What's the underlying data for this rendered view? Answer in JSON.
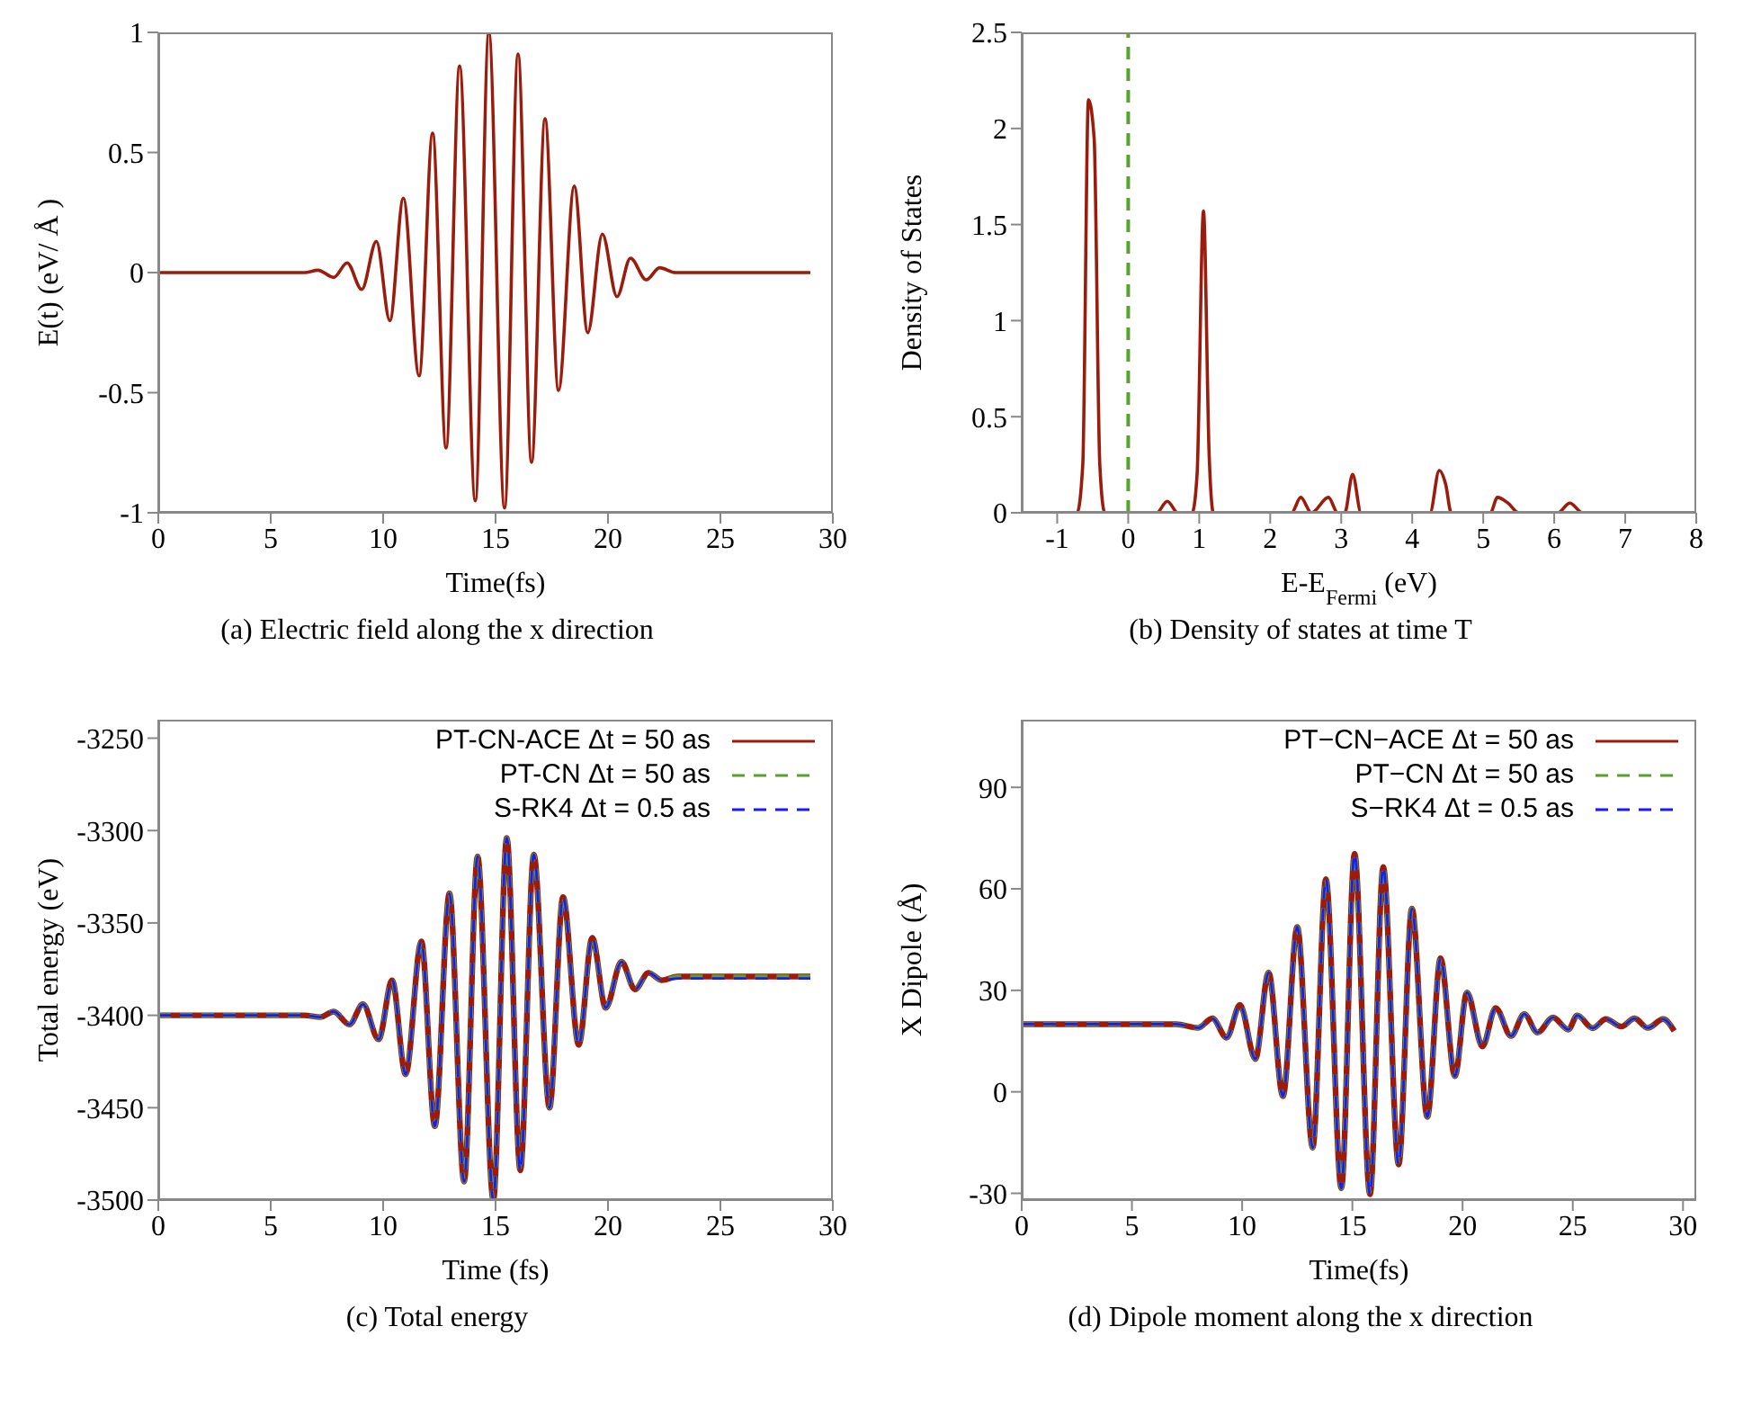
{
  "chart_data": [
    {
      "type": "line",
      "title": "(a) Electric field along the x direction",
      "xlabel": "Time(fs)",
      "ylabel": "E(t) (eV/ Å )",
      "xlim": [
        0,
        30
      ],
      "xticks": [
        0,
        5,
        10,
        15,
        20,
        25,
        30
      ],
      "ylim": [
        -1,
        1
      ],
      "yticks": [
        -1,
        -0.5,
        0,
        0.5,
        1
      ],
      "series": [
        {
          "color": "#9b1c0c",
          "line_style": "solid",
          "x": [
            0,
            6.5,
            7.1,
            7.8,
            8.4,
            9.05,
            9.7,
            10.3,
            10.9,
            11.6,
            12.2,
            12.8,
            13.4,
            14.1,
            14.7,
            15.4,
            16.0,
            16.6,
            17.2,
            17.8,
            18.5,
            19.1,
            19.75,
            20.4,
            21.0,
            21.7,
            22.3,
            23,
            29
          ],
          "values": [
            0,
            0,
            0.01,
            -0.02,
            0.04,
            -0.07,
            0.13,
            -0.2,
            0.31,
            -0.43,
            0.58,
            -0.73,
            0.86,
            -0.95,
            1,
            -0.98,
            0.91,
            -0.79,
            0.64,
            -0.49,
            0.36,
            -0.25,
            0.16,
            -0.1,
            0.06,
            -0.03,
            0.02,
            0,
            0
          ]
        }
      ]
    },
    {
      "type": "line",
      "title": "(b) Density of states at time T",
      "xlabel": "E-E$_{Fermi}$ (eV)",
      "ylabel": "Density of States",
      "xlim": [
        -1.5,
        8
      ],
      "xticks": [
        -1,
        0,
        1,
        2,
        3,
        4,
        5,
        6,
        7,
        8
      ],
      "ylim": [
        0,
        2.5
      ],
      "yticks": [
        0,
        0.5,
        1,
        1.5,
        2,
        2.5
      ],
      "ref_lines": [
        {
          "axis": "x",
          "value": 0,
          "color": "#5aa02c",
          "line_style": "dashed"
        }
      ],
      "series": [
        {
          "color": "#9b1c0c",
          "line_style": "solid",
          "x": [
            -1.5,
            -0.72,
            -0.64,
            -0.56,
            -0.48,
            -0.4,
            -0.33,
            0.4,
            0.55,
            0.7,
            0.9,
            0.97,
            1.06,
            1.14,
            1.2,
            2.3,
            2.43,
            2.58,
            2.82,
            2.95,
            3.05,
            3.16,
            3.28,
            4.25,
            4.38,
            4.47,
            4.55,
            5.1,
            5.2,
            5.35,
            5.5,
            6.05,
            6.22,
            6.4,
            8
          ],
          "values": [
            0,
            0,
            0.25,
            2.15,
            1.95,
            0.25,
            0,
            0,
            0.06,
            0,
            0,
            0.2,
            1.57,
            0.3,
            0,
            0,
            0.08,
            0,
            0.08,
            0,
            0,
            0.2,
            0,
            0,
            0.22,
            0.15,
            0,
            0,
            0.08,
            0.05,
            0,
            0,
            0.05,
            0,
            0
          ]
        }
      ]
    },
    {
      "type": "line",
      "title": "(c) Total energy",
      "xlabel": "Time (fs)",
      "ylabel": "Total energy (eV)",
      "xlim": [
        0,
        30
      ],
      "xticks": [
        0,
        5,
        10,
        15,
        20,
        25,
        30
      ],
      "ylim": [
        -3500,
        -3240
      ],
      "yticks": [
        -3500,
        -3450,
        -3400,
        -3350,
        -3300,
        -3250
      ],
      "legend": "top right",
      "series": [
        {
          "name": "PT-CN-ACE Δt = 50 as",
          "color": "#9b1c0c",
          "line_style": "solid",
          "x": [
            0,
            6.5,
            7.2,
            7.8,
            8.5,
            9.1,
            9.8,
            10.4,
            11.0,
            11.7,
            12.3,
            12.95,
            13.6,
            14.2,
            14.9,
            15.5,
            16.1,
            16.7,
            17.4,
            18.0,
            18.7,
            19.3,
            19.9,
            20.6,
            21.2,
            21.8,
            22.4,
            23.1,
            29
          ],
          "values": [
            -3400,
            -3400,
            -3401,
            -3398,
            -3405,
            -3394,
            -3413,
            -3381,
            -3432,
            -3360,
            -3460,
            -3334,
            -3490,
            -3314,
            -3500,
            -3304,
            -3484,
            -3313,
            -3450,
            -3336,
            -3416,
            -3358,
            -3396,
            -3371,
            -3386,
            -3377,
            -3381,
            -3379,
            -3379
          ]
        },
        {
          "name": "PT-CN Δt = 50 as",
          "color": "#5aa02c",
          "line_style": "dashed",
          "x": [
            0,
            6.5,
            7.2,
            7.8,
            8.5,
            9.1,
            9.8,
            10.4,
            11.0,
            11.7,
            12.3,
            12.95,
            13.6,
            14.2,
            14.9,
            15.5,
            16.1,
            16.7,
            17.4,
            18.0,
            18.7,
            19.3,
            19.9,
            20.6,
            21.2,
            21.8,
            22.4,
            23.1,
            29
          ],
          "values": [
            -3400,
            -3400,
            -3401,
            -3398,
            -3405,
            -3394,
            -3413,
            -3381,
            -3432,
            -3360,
            -3460,
            -3334,
            -3490,
            -3314,
            -3500,
            -3304,
            -3484,
            -3313,
            -3450,
            -3336,
            -3416,
            -3358,
            -3396,
            -3371,
            -3386,
            -3377,
            -3381,
            -3379,
            -3379
          ]
        },
        {
          "name": "S-RK4 Δt = 0.5 as",
          "color": "#1a1aff",
          "line_style": "dashed",
          "x": [
            0,
            6.5,
            7.2,
            7.8,
            8.5,
            9.1,
            9.8,
            10.4,
            11.0,
            11.7,
            12.3,
            12.95,
            13.6,
            14.2,
            14.9,
            15.5,
            16.1,
            16.7,
            17.4,
            18.0,
            18.7,
            19.3,
            19.9,
            20.6,
            21.2,
            21.8,
            22.4,
            23.1,
            29
          ],
          "values": [
            -3400,
            -3400,
            -3401,
            -3398,
            -3405,
            -3394,
            -3413,
            -3381,
            -3432,
            -3360,
            -3460,
            -3334,
            -3490,
            -3314,
            -3500,
            -3304,
            -3484,
            -3313,
            -3450,
            -3336,
            -3416,
            -3358,
            -3396,
            -3371,
            -3386,
            -3377,
            -3381,
            -3380,
            -3380
          ]
        }
      ]
    },
    {
      "type": "line",
      "title": "(d) Dipole moment along the x direction",
      "xlabel": "Time(fs)",
      "ylabel": "X Dipole (Å)",
      "xlim": [
        0,
        30.6
      ],
      "xticks": [
        0,
        5,
        10,
        15,
        20,
        25,
        30
      ],
      "ylim": [
        -32,
        110
      ],
      "yticks": [
        -30,
        0,
        30,
        60,
        90
      ],
      "legend": "top right",
      "series": [
        {
          "name": "PT−CN−ACE Δt = 50 as",
          "color": "#9b1c0c",
          "line_style": "solid",
          "x": [
            0,
            7,
            8.0,
            8.65,
            9.3,
            9.9,
            10.6,
            11.2,
            11.85,
            12.5,
            13.2,
            13.8,
            14.5,
            15.1,
            15.8,
            16.4,
            17.1,
            17.7,
            18.4,
            19.0,
            19.65,
            20.2,
            20.9,
            21.5,
            22.2,
            22.8,
            23.4,
            24.1,
            24.8,
            25.2,
            25.9,
            26.5,
            27.2,
            27.8,
            28.4,
            29.1,
            29.6
          ],
          "values": [
            20,
            20,
            18.9,
            21.7,
            16,
            25.7,
            9.7,
            35.3,
            -1.3,
            48.7,
            -16.5,
            62.9,
            -28.5,
            70.4,
            -30.3,
            66.5,
            -21.5,
            54.2,
            -7.4,
            39.5,
            4.6,
            29.4,
            13.4,
            24.8,
            16.5,
            23,
            17.5,
            22,
            18.4,
            22.6,
            18.8,
            21.5,
            19.3,
            21.7,
            18.9,
            21.5,
            18
          ]
        },
        {
          "name": "PT−CN Δt = 50 as",
          "color": "#5aa02c",
          "line_style": "dashed",
          "x": [
            0,
            7,
            8.0,
            8.65,
            9.3,
            9.9,
            10.6,
            11.2,
            11.85,
            12.5,
            13.2,
            13.8,
            14.5,
            15.1,
            15.8,
            16.4,
            17.1,
            17.7,
            18.4,
            19.0,
            19.65,
            20.2,
            20.9,
            21.5,
            22.2,
            22.8,
            23.4,
            24.1,
            24.8,
            25.2,
            25.9,
            26.5,
            27.2,
            27.8,
            28.4,
            29.1,
            29.6
          ],
          "values": [
            20,
            20,
            18.9,
            21.7,
            16,
            25.7,
            9.7,
            35.3,
            -1.3,
            48.7,
            -16.5,
            62.9,
            -28.5,
            70.4,
            -30.3,
            66.5,
            -21.5,
            54.2,
            -7.4,
            39.5,
            4.6,
            29.4,
            13.4,
            24.8,
            16.5,
            23,
            17.5,
            22,
            18.4,
            22.6,
            18.8,
            21.5,
            19.3,
            21.7,
            18.9,
            21.5,
            18
          ]
        },
        {
          "name": "S−RK4 Δt = 0.5 as",
          "color": "#1a1aff",
          "line_style": "dashed",
          "x": [
            0,
            7,
            8.0,
            8.65,
            9.3,
            9.9,
            10.6,
            11.2,
            11.85,
            12.5,
            13.2,
            13.8,
            14.5,
            15.1,
            15.8,
            16.4,
            17.1,
            17.7,
            18.4,
            19.0,
            19.65,
            20.2,
            20.9,
            21.5,
            22.2,
            22.8,
            23.4,
            24.1,
            24.8,
            25.2,
            25.9,
            26.5,
            27.2,
            27.8,
            28.4,
            29.1,
            29.6
          ],
          "values": [
            20,
            20,
            18.9,
            21.7,
            16,
            25.7,
            9.7,
            35.3,
            -1.3,
            48.7,
            -16.5,
            62.9,
            -28.5,
            70.4,
            -30.3,
            66.5,
            -21.5,
            54.2,
            -7.4,
            39.5,
            4.6,
            29.4,
            13.4,
            24.8,
            16.5,
            23,
            17.5,
            22,
            18.4,
            22.6,
            18.8,
            21.5,
            19.3,
            21.7,
            18.9,
            21.5,
            18
          ]
        }
      ]
    }
  ]
}
